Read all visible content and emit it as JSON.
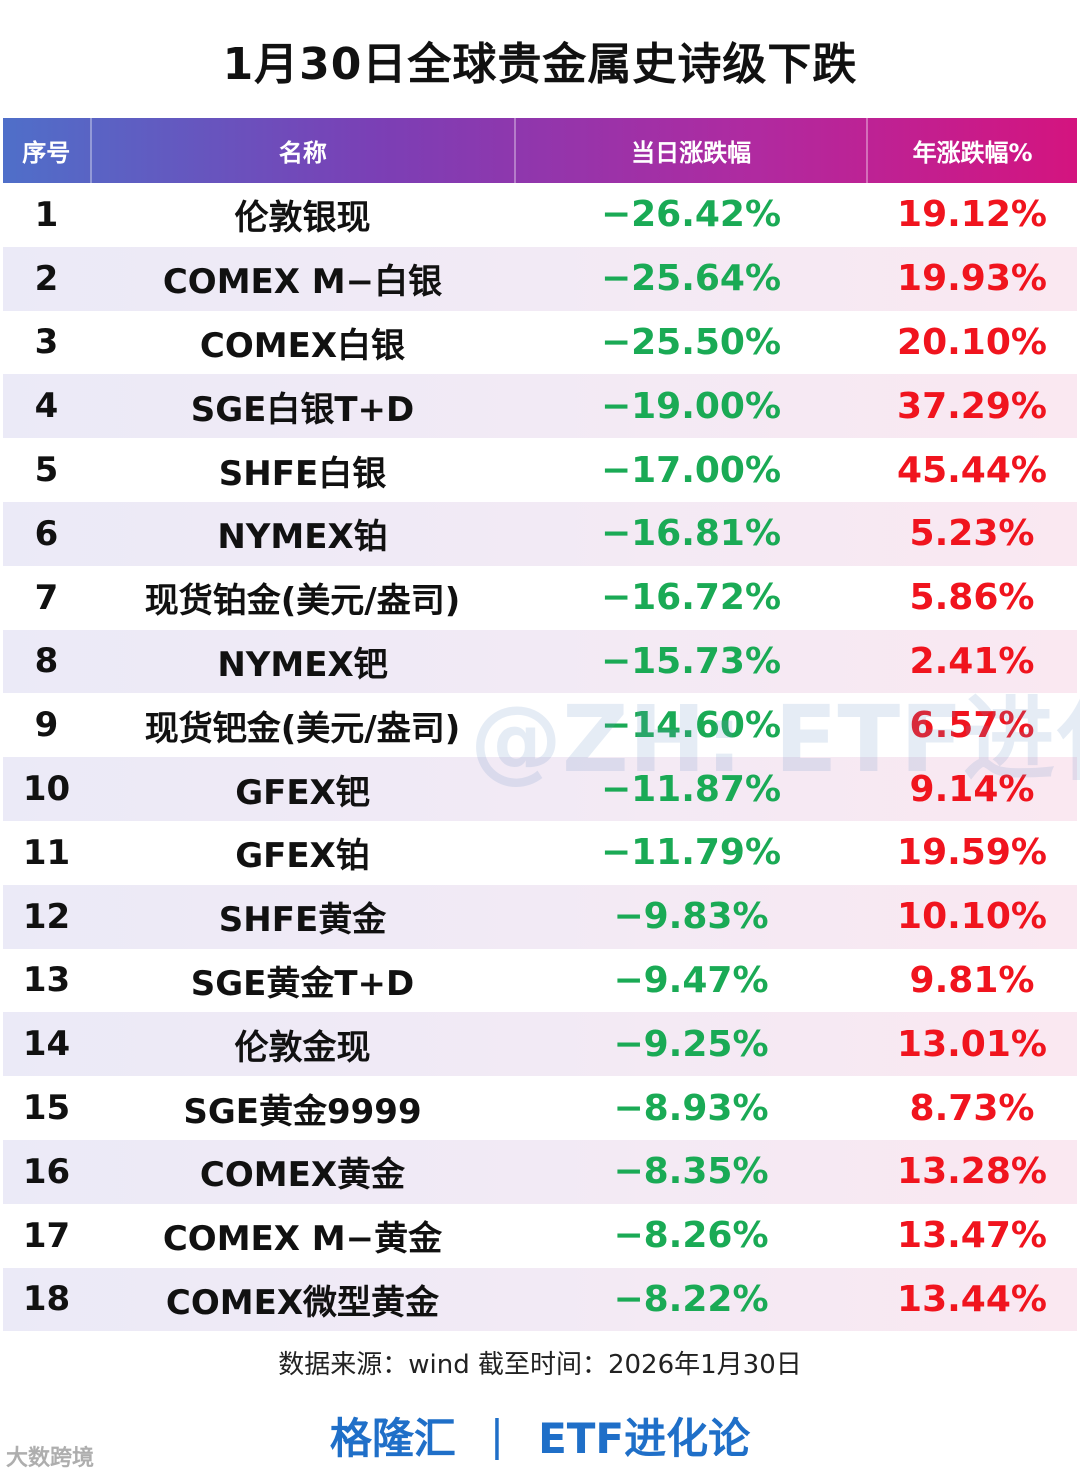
{
  "title": "1月30日全球贵金属史诗级下跌",
  "colors": {
    "down": "#1aaa55",
    "up": "#f0141e",
    "brand": "#1f6fc8"
  },
  "table": {
    "headers": [
      "序号",
      "名称",
      "当日涨跌幅",
      "年涨跌幅%"
    ],
    "rows": [
      {
        "no": "1",
        "name": "伦敦银现",
        "day": "−26.42%",
        "year": "19.12%"
      },
      {
        "no": "2",
        "name": "COMEX M−白银",
        "day": "−25.64%",
        "year": "19.93%"
      },
      {
        "no": "3",
        "name": "COMEX白银",
        "day": "−25.50%",
        "year": "20.10%"
      },
      {
        "no": "4",
        "name": "SGE白银T+D",
        "day": "−19.00%",
        "year": "37.29%"
      },
      {
        "no": "5",
        "name": "SHFE白银",
        "day": "−17.00%",
        "year": "45.44%"
      },
      {
        "no": "6",
        "name": "NYMEX铂",
        "day": "−16.81%",
        "year": "5.23%"
      },
      {
        "no": "7",
        "name": "现货铂金(美元/盎司)",
        "day": "−16.72%",
        "year": "5.86%"
      },
      {
        "no": "8",
        "name": "NYMEX钯",
        "day": "−15.73%",
        "year": "2.41%"
      },
      {
        "no": "9",
        "name": "现货钯金(美元/盎司)",
        "day": "−14.60%",
        "year": "6.57%"
      },
      {
        "no": "10",
        "name": "GFEX钯",
        "day": "−11.87%",
        "year": "9.14%"
      },
      {
        "no": "11",
        "name": "GFEX铂",
        "day": "−11.79%",
        "year": "19.59%"
      },
      {
        "no": "12",
        "name": "SHFE黄金",
        "day": "−9.83%",
        "year": "10.10%"
      },
      {
        "no": "13",
        "name": "SGE黄金T+D",
        "day": "−9.47%",
        "year": "9.81%"
      },
      {
        "no": "14",
        "name": "伦敦金现",
        "day": "−9.25%",
        "year": "13.01%"
      },
      {
        "no": "15",
        "name": "SGE黄金9999",
        "day": "−8.93%",
        "year": "8.73%"
      },
      {
        "no": "16",
        "name": "COMEX黄金",
        "day": "−8.35%",
        "year": "13.28%"
      },
      {
        "no": "17",
        "name": "COMEX M−黄金",
        "day": "−8.26%",
        "year": "13.47%"
      },
      {
        "no": "18",
        "name": "COMEX微型黄金",
        "day": "−8.22%",
        "year": "13.44%"
      }
    ]
  },
  "source": "数据来源：wind 截至时间：2026年1月30日",
  "footer": {
    "left": "格隆汇",
    "separator": "|",
    "right": "ETF进化论"
  },
  "watermark": "@ZH: ETF进化论",
  "brand_mark": "大数跨境"
}
